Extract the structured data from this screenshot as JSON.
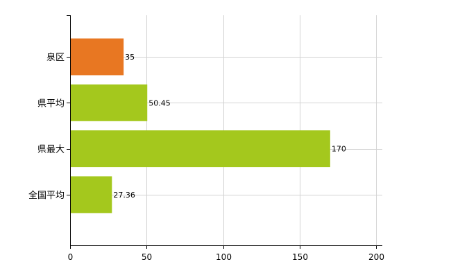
{
  "chart_data": {
    "type": "bar",
    "orientation": "horizontal",
    "categories": [
      "泉区",
      "県平均",
      "県最大",
      "全国平均"
    ],
    "values": [
      35,
      50.45,
      170,
      27.36
    ],
    "value_labels": [
      "35",
      "50.45",
      "170",
      "27.36"
    ],
    "bar_colors": [
      "#e87722",
      "#a4c81d",
      "#a4c81d",
      "#a4c81d"
    ],
    "xlim": [
      0,
      200
    ],
    "xticks": [
      0,
      50,
      100,
      150,
      200
    ],
    "xtick_labels": [
      "0",
      "50",
      "100",
      "150",
      "200"
    ],
    "grid": true,
    "legend": "none",
    "title": "",
    "xlabel": "",
    "ylabel": ""
  }
}
